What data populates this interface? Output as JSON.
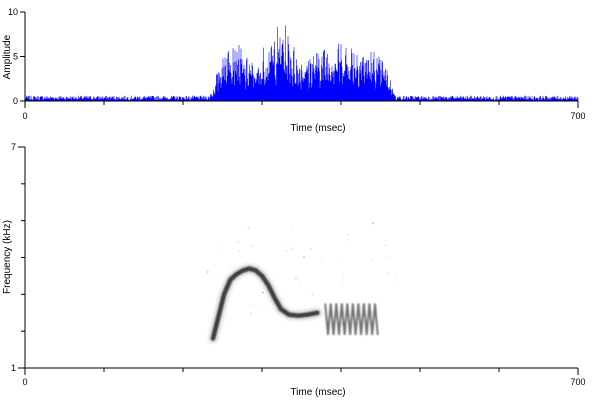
{
  "chart_data": [
    {
      "type": "area",
      "panel": "waveform",
      "xlabel": "Time (msec)",
      "ylabel": "Amplitude",
      "xlim": [
        0,
        700
      ],
      "ylim": [
        0,
        10
      ],
      "x_ticks": [
        0,
        700
      ],
      "x_minor_ticks": [
        100,
        200,
        300,
        400,
        500,
        600
      ],
      "y_ticks": [
        0,
        5,
        10
      ],
      "noise_level": 0.35,
      "color": "#0000ff",
      "envelope": [
        {
          "x": 0,
          "y": 0.4
        },
        {
          "x": 230,
          "y": 0.4
        },
        {
          "x": 238,
          "y": 1.5
        },
        {
          "x": 248,
          "y": 5.5
        },
        {
          "x": 255,
          "y": 7.0
        },
        {
          "x": 262,
          "y": 8.5
        },
        {
          "x": 270,
          "y": 7.5
        },
        {
          "x": 278,
          "y": 5.0
        },
        {
          "x": 285,
          "y": 5.2
        },
        {
          "x": 295,
          "y": 4.5
        },
        {
          "x": 305,
          "y": 7.0
        },
        {
          "x": 315,
          "y": 8.0
        },
        {
          "x": 325,
          "y": 9.5
        },
        {
          "x": 335,
          "y": 7.5
        },
        {
          "x": 345,
          "y": 5.5
        },
        {
          "x": 360,
          "y": 5.8
        },
        {
          "x": 380,
          "y": 6.8
        },
        {
          "x": 400,
          "y": 7.2
        },
        {
          "x": 420,
          "y": 6.8
        },
        {
          "x": 440,
          "y": 6.0
        },
        {
          "x": 455,
          "y": 5.0
        },
        {
          "x": 465,
          "y": 2.0
        },
        {
          "x": 472,
          "y": 0.4
        },
        {
          "x": 700,
          "y": 0.4
        }
      ]
    },
    {
      "type": "heatmap",
      "panel": "spectrogram",
      "xlabel": "Time (msec)",
      "ylabel": "Frequency (kHz)",
      "xlim": [
        0,
        700
      ],
      "ylim": [
        1,
        7
      ],
      "x_ticks": [
        0,
        700
      ],
      "x_minor_ticks": [
        100,
        200,
        300,
        400,
        500,
        600
      ],
      "y_ticks": [
        1,
        7
      ],
      "y_minor_ticks": [
        2,
        3,
        4,
        5,
        6
      ],
      "color": "#000000",
      "contour": [
        {
          "x": 238,
          "y": 1.8
        },
        {
          "x": 245,
          "y": 2.4
        },
        {
          "x": 252,
          "y": 3.0
        },
        {
          "x": 260,
          "y": 3.4
        },
        {
          "x": 268,
          "y": 3.55
        },
        {
          "x": 276,
          "y": 3.65
        },
        {
          "x": 284,
          "y": 3.7
        },
        {
          "x": 292,
          "y": 3.65
        },
        {
          "x": 300,
          "y": 3.5
        },
        {
          "x": 308,
          "y": 3.25
        },
        {
          "x": 316,
          "y": 2.9
        },
        {
          "x": 324,
          "y": 2.6
        },
        {
          "x": 334,
          "y": 2.45
        },
        {
          "x": 346,
          "y": 2.42
        },
        {
          "x": 358,
          "y": 2.45
        },
        {
          "x": 370,
          "y": 2.5
        },
        {
          "x": 390,
          "y": 2.5
        },
        {
          "x": 410,
          "y": 2.5
        },
        {
          "x": 430,
          "y": 2.5
        },
        {
          "x": 448,
          "y": 2.5
        }
      ],
      "trill_start": 380,
      "trill_end": 448,
      "trill_period_ms": 7,
      "trill_low": 1.9,
      "trill_high": 2.75
    }
  ]
}
